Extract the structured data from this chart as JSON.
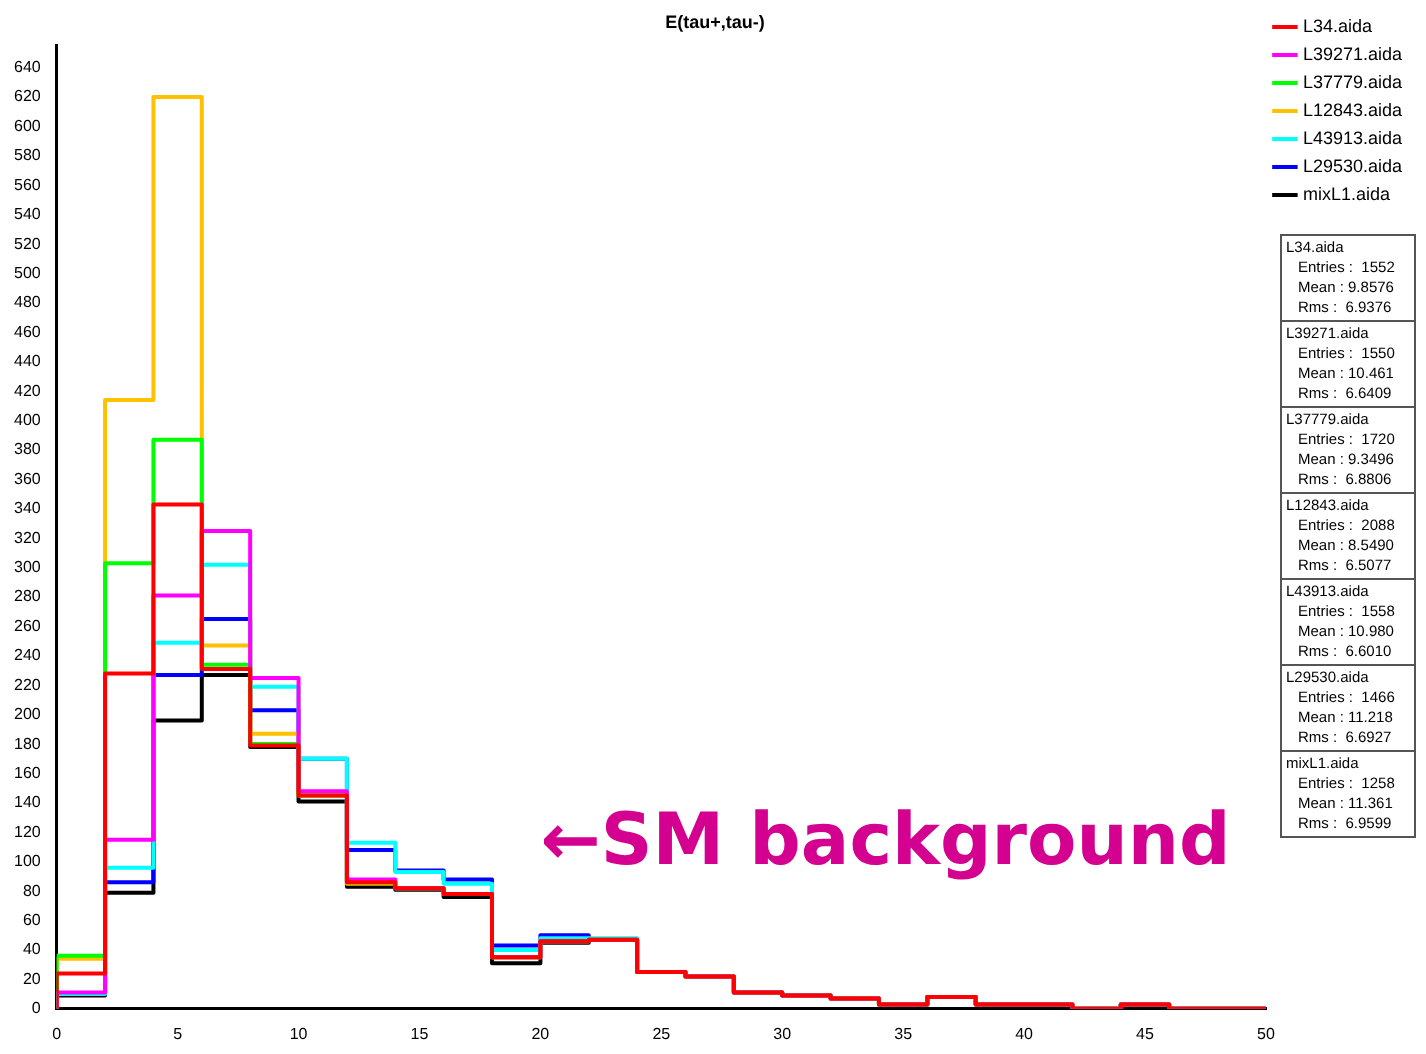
{
  "chart_data": {
    "type": "histogram",
    "title": "E(tau+,tau-)",
    "bins": [
      0,
      2,
      4,
      6,
      8,
      10,
      12,
      14,
      16,
      18,
      20,
      22,
      24,
      26,
      28,
      30,
      32,
      34,
      36,
      38,
      40,
      42,
      44,
      46,
      48,
      50
    ],
    "series": [
      {
        "name": "L34.aida",
        "color": "#ff0000",
        "values": [
          24,
          228,
          343,
          231,
          179,
          145,
          86,
          82,
          78,
          35,
          46,
          47,
          25,
          22,
          11,
          9,
          7,
          3,
          8,
          3,
          3,
          0,
          3,
          0,
          0
        ]
      },
      {
        "name": "L39271.aida",
        "color": "#ff00ff",
        "values": [
          11,
          115,
          281,
          325,
          225,
          148,
          88,
          82,
          78,
          35,
          46,
          47,
          25,
          22,
          11,
          9,
          7,
          3,
          8,
          3,
          3,
          0,
          3,
          0,
          0
        ]
      },
      {
        "name": "L37779.aida",
        "color": "#00ff00",
        "values": [
          36,
          303,
          387,
          234,
          180,
          145,
          86,
          82,
          78,
          35,
          46,
          47,
          25,
          22,
          11,
          9,
          7,
          3,
          8,
          3,
          3,
          0,
          3,
          0,
          0
        ]
      },
      {
        "name": "L12843.aida",
        "color": "#ffc000",
        "values": [
          34,
          414,
          620,
          247,
          187,
          145,
          85,
          82,
          78,
          35,
          46,
          47,
          25,
          22,
          11,
          9,
          7,
          3,
          8,
          3,
          3,
          0,
          3,
          0,
          0
        ]
      },
      {
        "name": "L43913.aida",
        "color": "#00ffff",
        "values": [
          10,
          96,
          249,
          302,
          219,
          170,
          113,
          93,
          85,
          40,
          48,
          48,
          25,
          22,
          11,
          9,
          7,
          3,
          8,
          3,
          3,
          0,
          3,
          0,
          0
        ]
      },
      {
        "name": "L29530.aida",
        "color": "#0000ff",
        "values": [
          10,
          86,
          227,
          265,
          203,
          170,
          108,
          94,
          88,
          43,
          50,
          47,
          25,
          22,
          11,
          9,
          7,
          3,
          8,
          3,
          3,
          0,
          3,
          0,
          0
        ]
      },
      {
        "name": "mixL1.aida",
        "color": "#000000",
        "values": [
          9,
          79,
          196,
          227,
          178,
          141,
          83,
          81,
          76,
          31,
          45,
          47,
          25,
          22,
          11,
          9,
          7,
          3,
          8,
          3,
          3,
          0,
          3,
          0,
          0
        ]
      }
    ],
    "xlim": [
      0,
      50
    ],
    "xticks": [
      0,
      5,
      10,
      15,
      20,
      25,
      30,
      35,
      40,
      45,
      50
    ],
    "ylim": [
      0,
      655
    ],
    "yticks": [
      0,
      20,
      40,
      60,
      80,
      100,
      120,
      140,
      160,
      180,
      200,
      220,
      240,
      260,
      280,
      300,
      320,
      340,
      360,
      380,
      400,
      420,
      440,
      460,
      480,
      500,
      520,
      540,
      560,
      580,
      600,
      620,
      640
    ],
    "legend": "top right",
    "annotations": [
      "←SM background",
      "L34.aida\nEntries :  1552\nMean : 9.8576\nRms :  6.9376",
      "L39271.aida\nEntries :  1550\nMean : 10.461\nRms :  6.6409",
      "L37779.aida\nEntries :  1720\nMean : 9.3496\nRms :  6.8806",
      "L12843.aida\nEntries :  2088\nMean : 8.5490\nRms :  6.5077",
      "L43913.aida\nEntries :  1558\nMean : 10.980\nRms :  6.6010",
      "L29530.aida\nEntries :  1466\nMean : 11.218\nRms :  6.6927",
      "mixL1.aida\nEntries :  1258\nMean : 11.361\nRms :  6.9599"
    ]
  }
}
